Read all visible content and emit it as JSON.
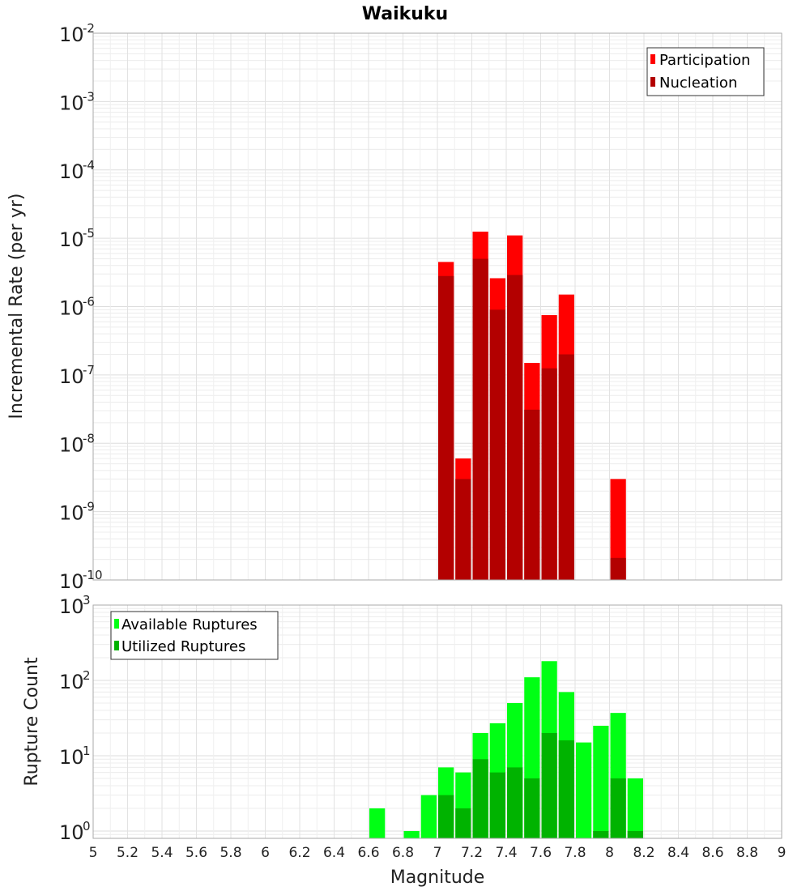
{
  "chart_data": [
    {
      "type": "bar",
      "title": "Waikuku",
      "xlabel": "Magnitude",
      "ylabel": "Incremental Rate (per yr)",
      "xlim": [
        5,
        9
      ],
      "ylim": [
        1e-10,
        0.01
      ],
      "yscale": "log",
      "grid": true,
      "legend_position": "top-right",
      "x_ticks": [
        "5",
        "5.2",
        "5.4",
        "5.6",
        "5.8",
        "6",
        "6.2",
        "6.4",
        "6.6",
        "6.8",
        "7",
        "7.2",
        "7.4",
        "7.6",
        "7.8",
        "8",
        "8.2",
        "8.4",
        "8.6",
        "8.8",
        "9"
      ],
      "y_ticks": [
        {
          "base": "10",
          "exp": "-2"
        },
        {
          "base": "10",
          "exp": "-3"
        },
        {
          "base": "10",
          "exp": "-4"
        },
        {
          "base": "10",
          "exp": "-5"
        },
        {
          "base": "10",
          "exp": "-6"
        },
        {
          "base": "10",
          "exp": "-7"
        },
        {
          "base": "10",
          "exp": "-8"
        },
        {
          "base": "10",
          "exp": "-9"
        },
        {
          "base": "10",
          "exp": "-10"
        }
      ],
      "series": [
        {
          "name": "Participation",
          "color": "#ff0000",
          "x": [
            7.05,
            7.15,
            7.25,
            7.35,
            7.45,
            7.55,
            7.65,
            7.75,
            8.05
          ],
          "values": [
            4.5e-06,
            6e-09,
            1.25e-05,
            2.6e-06,
            1.1e-05,
            1.5e-07,
            7.5e-07,
            1.5e-06,
            3e-09
          ]
        },
        {
          "name": "Nucleation",
          "color": "#b30000",
          "x": [
            7.05,
            7.15,
            7.25,
            7.35,
            7.45,
            7.55,
            7.65,
            7.75,
            8.05
          ],
          "values": [
            2.8e-06,
            3e-09,
            5e-06,
            9e-07,
            2.9e-06,
            3.1e-08,
            1.25e-07,
            2e-07,
            2.1e-10
          ]
        }
      ]
    },
    {
      "type": "bar",
      "title": "",
      "xlabel": "Magnitude",
      "ylabel": "Rupture Count",
      "xlim": [
        5,
        9
      ],
      "ylim": [
        0.8,
        1000
      ],
      "yscale": "log",
      "grid": true,
      "legend_position": "top-left",
      "y_ticks": [
        {
          "base": "10",
          "exp": "3"
        },
        {
          "base": "10",
          "exp": "2"
        },
        {
          "base": "10",
          "exp": "1"
        },
        {
          "base": "10",
          "exp": "0"
        }
      ],
      "series": [
        {
          "name": "Available Ruptures",
          "color": "#00ff14",
          "x": [
            6.65,
            6.85,
            6.95,
            7.05,
            7.15,
            7.25,
            7.35,
            7.45,
            7.55,
            7.65,
            7.75,
            7.85,
            7.95,
            8.05,
            8.15
          ],
          "values": [
            2,
            1,
            3,
            7,
            6,
            20,
            27,
            50,
            110,
            180,
            70,
            15,
            25,
            37,
            5
          ]
        },
        {
          "name": "Utilized Ruptures",
          "color": "#00b300",
          "x": [
            7.05,
            7.15,
            7.25,
            7.35,
            7.45,
            7.55,
            7.65,
            7.75,
            7.95,
            8.05,
            8.15
          ],
          "values": [
            3,
            2,
            9,
            6,
            7,
            5,
            20,
            16,
            1,
            5,
            1
          ]
        }
      ]
    }
  ]
}
